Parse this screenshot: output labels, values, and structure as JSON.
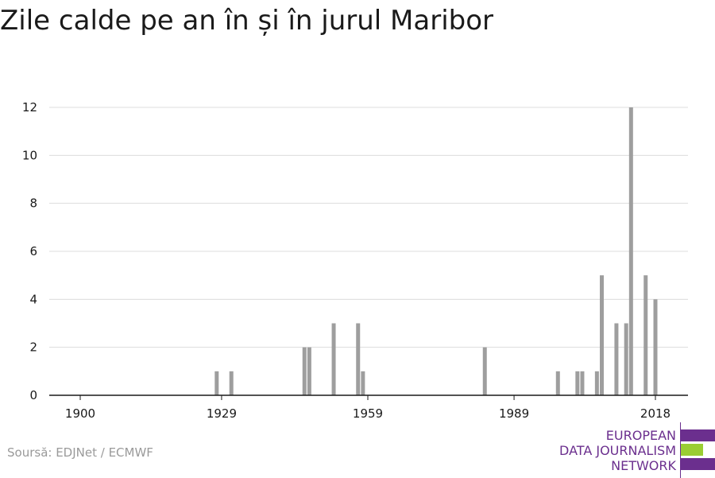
{
  "title": "Zile calde pe an în și în jurul Maribor",
  "source": "Soursă: EDJNet / ECMWF",
  "logo": {
    "line1": "EUROPEAN",
    "line2": "DATA JOURNALISM",
    "line3": "NETWORK",
    "colors": {
      "purple": "#6b2f8e",
      "green": "#9acd32"
    }
  },
  "colors": {
    "bar": "#9e9e9e",
    "grid": "#dcdcdc",
    "axis": "#1a1a1a"
  },
  "chart_data": {
    "type": "bar",
    "title": "Zile calde pe an în și în jurul Maribor",
    "xlabel": "",
    "ylabel": "",
    "xlim": [
      1897,
      2025
    ],
    "ylim": [
      0,
      12
    ],
    "xticks": [
      1900,
      1929,
      1959,
      1989,
      2018
    ],
    "yticks": [
      0,
      2,
      4,
      6,
      8,
      10,
      12
    ],
    "grid": true,
    "x": [
      1928,
      1931,
      1946,
      1947,
      1952,
      1957,
      1958,
      1983,
      1998,
      2002,
      2003,
      2006,
      2007,
      2010,
      2012,
      2013,
      2014,
      2016,
      2018
    ],
    "values": [
      1,
      1,
      2,
      2,
      3,
      3,
      1,
      2,
      1,
      1,
      1,
      1,
      5,
      3,
      3,
      12,
      0,
      5,
      4
    ]
  }
}
